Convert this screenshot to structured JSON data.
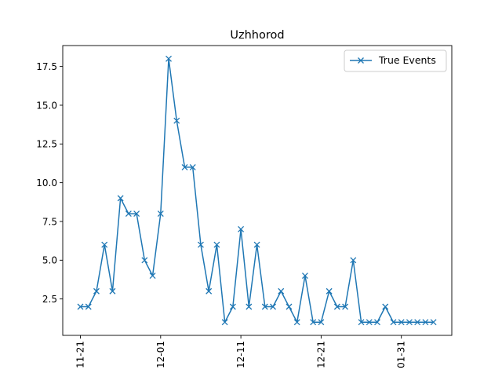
{
  "chart_data": {
    "type": "line",
    "title": "Uzhhorod",
    "xlabel": "",
    "ylabel": "",
    "x_tick_labels": [
      "11-21",
      "12-01",
      "12-11",
      "12-21",
      "01-31"
    ],
    "y_tick_labels": [
      "2.5",
      "5.0",
      "7.5",
      "10.0",
      "12.5",
      "15.0",
      "17.5"
    ],
    "ylim": [
      0.15,
      18.85
    ],
    "grid": false,
    "legend_position": "top-right",
    "color": "#1f77b4",
    "marker": "x",
    "series": [
      {
        "name": "True Events",
        "values": [
          2,
          2,
          3,
          6,
          3,
          9,
          8,
          8,
          5,
          4,
          8,
          18,
          14,
          11,
          11,
          6,
          3,
          6,
          1,
          2,
          7,
          2,
          6,
          2,
          2,
          3,
          2,
          1,
          4,
          1,
          1,
          3,
          2,
          2,
          5,
          1,
          1,
          1,
          2,
          1,
          1,
          1,
          1,
          1,
          1
        ]
      }
    ]
  }
}
